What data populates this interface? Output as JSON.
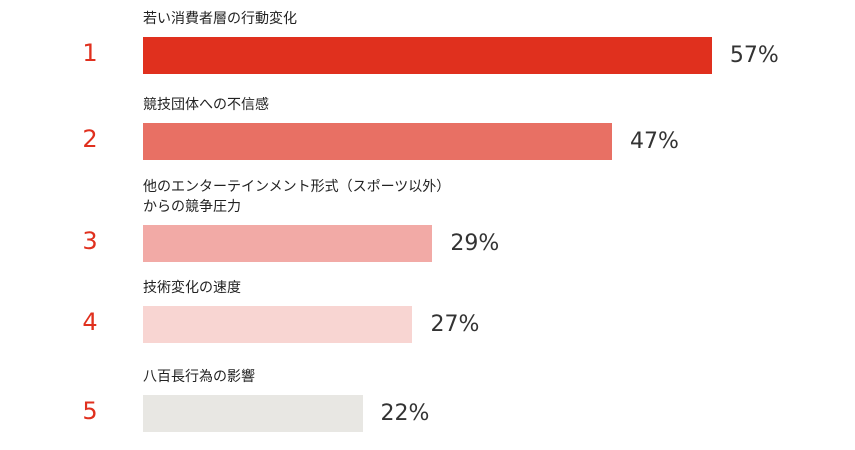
{
  "chart_data": {
    "type": "bar",
    "orientation": "horizontal",
    "ranks": [
      1,
      2,
      3,
      4,
      5
    ],
    "categories": [
      "若い消費者層の行動変化",
      "競技団体への不信感",
      "他のエンターテインメント形式（スポーツ以外）\nからの競争圧力",
      "技術変化の速度",
      "八百長行為の影響"
    ],
    "values": [
      57,
      47,
      29,
      27,
      22
    ],
    "value_labels": [
      "57%",
      "47%",
      "29%",
      "27%",
      "22%"
    ],
    "colors": [
      "#e0301e",
      "#e87064",
      "#f2aaa6",
      "#f8d5d2",
      "#e8e7e3"
    ],
    "rank_color": "#e0301e"
  }
}
